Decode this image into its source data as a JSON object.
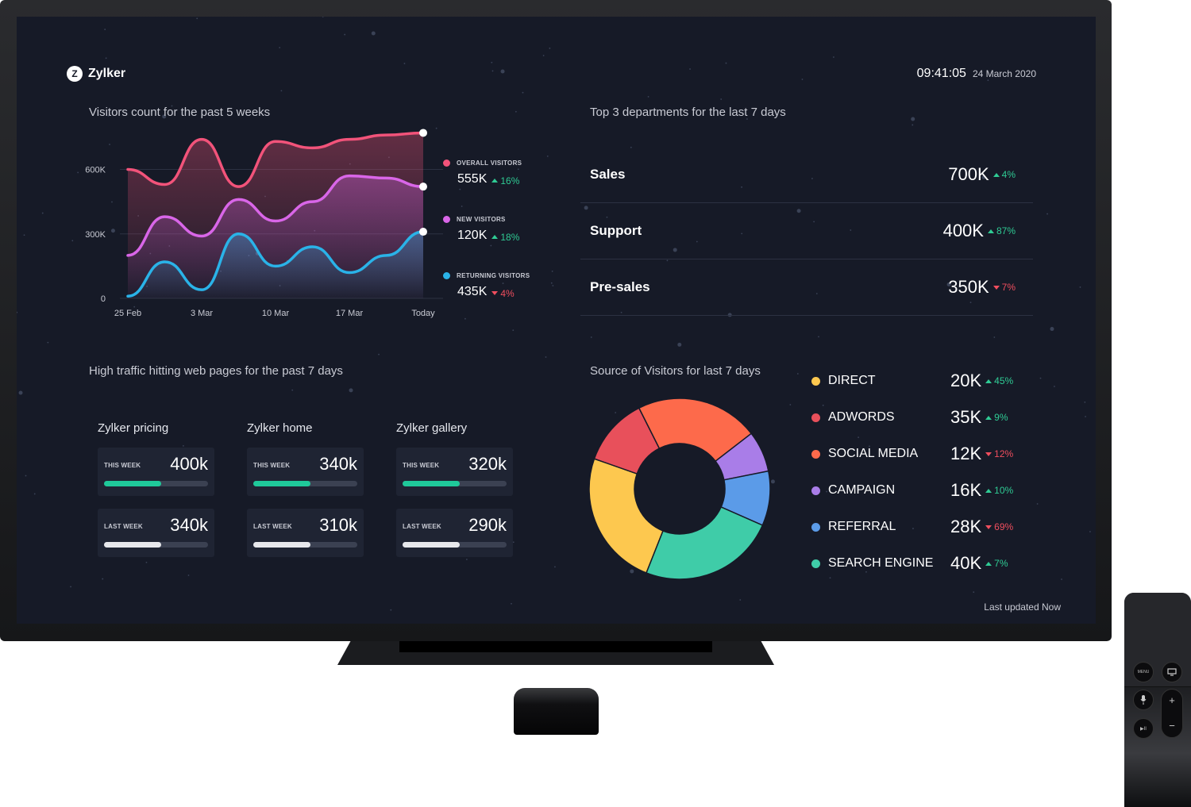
{
  "brand": {
    "logo_letter": "Z",
    "name": "Zylker"
  },
  "clock": {
    "time": "09:41:05",
    "date": "24 March 2020"
  },
  "visitors_chart": {
    "title": "Visitors count for the past 5 weeks",
    "legend": [
      {
        "label": "OVERALL VISITORS",
        "value": "555K",
        "delta": "16%",
        "trend": "up",
        "color": "#f2537a"
      },
      {
        "label": "NEW VISITORS",
        "value": "120K",
        "delta": "18%",
        "trend": "up",
        "color": "#d966e8"
      },
      {
        "label": "RETURNING VISITORS",
        "value": "435K",
        "delta": "4%",
        "trend": "down",
        "color": "#2ab3e8"
      }
    ]
  },
  "chart_data": [
    {
      "type": "line",
      "title": "Visitors count for the past 5 weeks",
      "x_labels": [
        "25 Feb",
        "3 Mar",
        "10 Mar",
        "17 Mar",
        "Today"
      ],
      "y_ticks": [
        "0",
        "300K",
        "600K"
      ],
      "ylim": [
        0,
        720000
      ],
      "grid": true,
      "x": [
        0,
        0.5,
        1,
        1.5,
        2,
        2.5,
        3,
        3.5,
        4
      ],
      "series": [
        {
          "name": "OVERALL VISITORS",
          "color": "#f2537a",
          "values": [
            600000,
            530000,
            740000,
            520000,
            730000,
            700000,
            740000,
            760000,
            770000
          ]
        },
        {
          "name": "NEW VISITORS",
          "color": "#d966e8",
          "values": [
            200000,
            380000,
            290000,
            460000,
            360000,
            450000,
            570000,
            560000,
            520000
          ]
        },
        {
          "name": "RETURNING VISITORS",
          "color": "#2ab3e8",
          "values": [
            10000,
            170000,
            40000,
            300000,
            150000,
            240000,
            120000,
            200000,
            310000
          ]
        }
      ]
    },
    {
      "type": "pie",
      "title": "Source of Visitors for  last 7 days",
      "categories": [
        "DIRECT",
        "ADWORDS",
        "SOCIAL MEDIA",
        "CAMPAIGN",
        "REFERRAL",
        "SEARCH ENGINE"
      ],
      "values": [
        20,
        10,
        18,
        6,
        8,
        20
      ],
      "colors": [
        "#fdc84f",
        "#e8505b",
        "#fd6a4b",
        "#a97de8",
        "#5b9be8",
        "#3fcca8"
      ]
    }
  ],
  "departments": {
    "title": "Top 3 departments for the last 7 days",
    "rows": [
      {
        "name": "Sales",
        "value": "700K",
        "delta": "4%",
        "trend": "up"
      },
      {
        "name": "Support",
        "value": "400K",
        "delta": "87%",
        "trend": "up"
      },
      {
        "name": "Pre-sales",
        "value": "350K",
        "delta": "7%",
        "trend": "down"
      }
    ]
  },
  "pages": {
    "title": "High traffic hitting web pages for the past 7 days",
    "items": [
      {
        "name": "Zylker pricing",
        "this_week_label": "THIS WEEK",
        "this_week": "400k",
        "this_week_fill": 0.55,
        "last_week_label": "LAST WEEK",
        "last_week": "340k",
        "last_week_fill": 0.55
      },
      {
        "name": "Zylker home",
        "this_week_label": "THIS WEEK",
        "this_week": "340k",
        "this_week_fill": 0.55,
        "last_week_label": "LAST WEEK",
        "last_week": "310k",
        "last_week_fill": 0.55
      },
      {
        "name": "Zylker gallery",
        "this_week_label": "THIS WEEK",
        "this_week": "320k",
        "this_week_fill": 0.55,
        "last_week_label": "LAST WEEK",
        "last_week": "290k",
        "last_week_fill": 0.55
      }
    ],
    "this_week_color": "#1fc99a",
    "last_week_color": "#e7e8ec"
  },
  "sources": {
    "title": "Source of Visitors for  last 7 days",
    "items": [
      {
        "name": "DIRECT",
        "value": "20K",
        "delta": "45%",
        "trend": "up",
        "color": "#fdc84f"
      },
      {
        "name": "ADWORDS",
        "value": "35K",
        "delta": "9%",
        "trend": "up",
        "color": "#e8505b"
      },
      {
        "name": "SOCIAL MEDIA",
        "value": "12K",
        "delta": "12%",
        "trend": "down",
        "color": "#fd6a4b"
      },
      {
        "name": "CAMPAIGN",
        "value": "16K",
        "delta": "10%",
        "trend": "up",
        "color": "#a97de8"
      },
      {
        "name": "REFERRAL",
        "value": "28K",
        "delta": "69%",
        "trend": "down",
        "color": "#5b9be8"
      },
      {
        "name": "SEARCH ENGINE",
        "value": "40K",
        "delta": "7%",
        "trend": "up",
        "color": "#3fcca8"
      }
    ]
  },
  "footer": {
    "updated": "Last updated Now"
  },
  "remote": {
    "menu_label": "MENU",
    "play_label": "▶II",
    "vol_up": "+",
    "vol_down": "−"
  }
}
